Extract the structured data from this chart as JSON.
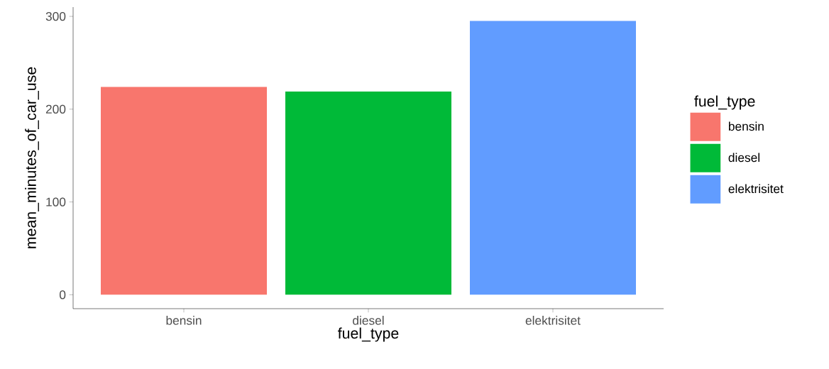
{
  "chart_data": {
    "type": "bar",
    "xlabel": "fuel_type",
    "ylabel": "mean_minutes_of_car_use",
    "legend_title": "fuel_type",
    "categories": [
      "bensin",
      "diesel",
      "elektrisitet"
    ],
    "series": [
      {
        "name": "bensin",
        "color": "#f8766d",
        "values": [
          224,
          null,
          null
        ]
      },
      {
        "name": "diesel",
        "color": "#00ba38",
        "values": [
          null,
          219,
          null
        ]
      },
      {
        "name": "elektrisitet",
        "color": "#619cff",
        "values": [
          null,
          null,
          295
        ]
      }
    ],
    "stacked": true,
    "ylim": [
      -15,
      310
    ],
    "yticks": [
      0,
      100,
      200,
      300
    ],
    "grid": false,
    "legend": "right"
  }
}
